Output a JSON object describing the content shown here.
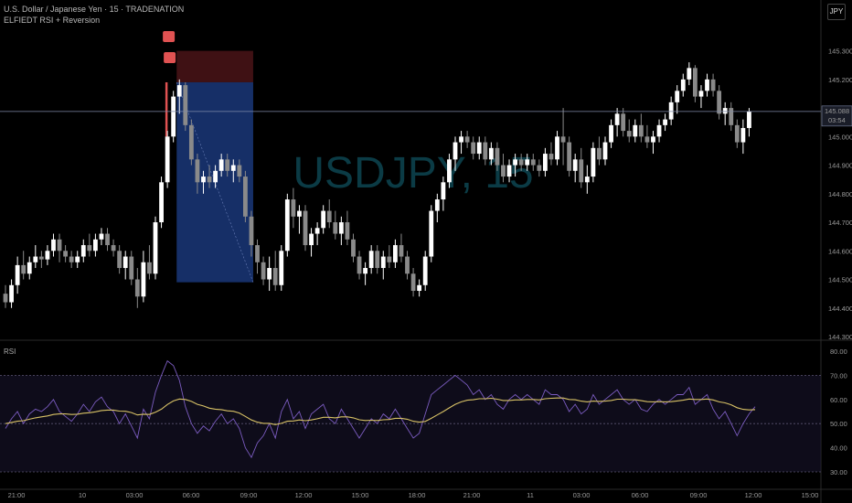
{
  "header": {
    "title": "U.S. Dollar / Japanese Yen · 15 · TRADENATION",
    "indicator": "ELFIEDT RSI + Reversion",
    "currency_button": "JPY"
  },
  "watermark": "USDJPY, 15",
  "rsi_label": "RSI",
  "price_tag": {
    "price": "145.088",
    "countdown": "03:54"
  },
  "colors": {
    "background": "#000000",
    "candle_up": "#ffffff",
    "candle_down": "#8a8a8a",
    "entry_zone": "#1e3f8a",
    "stop_zone": "#4a1418",
    "rsi_line": "#7b5cc0",
    "rsi_ma": "#d8c266",
    "signal": "#e05252",
    "rsi_band": "#1a1530"
  },
  "chart_data": [
    {
      "type": "candlestick",
      "title": "U.S. Dollar / Japanese Yen · 15 · TRADENATION",
      "ylim": [
        144.3,
        145.35
      ],
      "y_ticks": [
        "145.300",
        "145.200",
        "145.100",
        "145.000",
        "144.900",
        "144.800",
        "144.700",
        "144.600",
        "144.500",
        "144.400",
        "144.300"
      ],
      "x_ticks": [
        "21:00",
        "10",
        "03:00",
        "06:00",
        "09:00",
        "12:00",
        "15:00",
        "18:00",
        "21:00",
        "11",
        "03:00",
        "06:00",
        "09:00",
        "12:00",
        "15:00"
      ],
      "x_range": [
        0,
        148
      ],
      "x_tick_positions": [
        4,
        16,
        28,
        40,
        52,
        64,
        76,
        88,
        100,
        112,
        124,
        136,
        148,
        160,
        172
      ],
      "ohlc": [
        [
          144.45,
          144.48,
          144.4,
          144.42
        ],
        [
          144.42,
          144.5,
          144.4,
          144.48
        ],
        [
          144.48,
          144.58,
          144.45,
          144.55
        ],
        [
          144.55,
          144.6,
          144.5,
          144.52
        ],
        [
          144.52,
          144.58,
          144.5,
          144.56
        ],
        [
          144.56,
          144.62,
          144.54,
          144.58
        ],
        [
          144.58,
          144.6,
          144.54,
          144.57
        ],
        [
          144.57,
          144.62,
          144.55,
          144.6
        ],
        [
          144.6,
          144.66,
          144.58,
          144.64
        ],
        [
          144.64,
          144.66,
          144.56,
          144.6
        ],
        [
          144.6,
          144.62,
          144.56,
          144.58
        ],
        [
          144.58,
          144.6,
          144.54,
          144.56
        ],
        [
          144.56,
          144.6,
          144.54,
          144.58
        ],
        [
          144.58,
          144.64,
          144.56,
          144.62
        ],
        [
          144.62,
          144.66,
          144.58,
          144.6
        ],
        [
          144.6,
          144.66,
          144.58,
          144.64
        ],
        [
          144.64,
          144.68,
          144.62,
          144.66
        ],
        [
          144.66,
          144.68,
          144.6,
          144.62
        ],
        [
          144.62,
          144.64,
          144.58,
          144.6
        ],
        [
          144.6,
          144.62,
          144.52,
          144.54
        ],
        [
          144.54,
          144.6,
          144.5,
          144.58
        ],
        [
          144.58,
          144.6,
          144.48,
          144.5
        ],
        [
          144.5,
          144.54,
          144.4,
          144.44
        ],
        [
          144.44,
          144.6,
          144.42,
          144.56
        ],
        [
          144.56,
          144.62,
          144.5,
          144.52
        ],
        [
          144.52,
          144.72,
          144.5,
          144.7
        ],
        [
          144.7,
          144.86,
          144.68,
          144.84
        ],
        [
          144.84,
          145.02,
          144.82,
          145.0
        ],
        [
          145.0,
          145.16,
          144.98,
          145.14
        ],
        [
          145.14,
          145.2,
          145.08,
          145.18
        ],
        [
          145.18,
          145.19,
          145.02,
          145.04
        ],
        [
          145.04,
          145.06,
          144.9,
          144.92
        ],
        [
          144.92,
          144.94,
          144.8,
          144.84
        ],
        [
          144.84,
          144.88,
          144.8,
          144.86
        ],
        [
          144.86,
          144.9,
          144.82,
          144.84
        ],
        [
          144.84,
          144.9,
          144.82,
          144.88
        ],
        [
          144.88,
          144.94,
          144.86,
          144.92
        ],
        [
          144.92,
          144.94,
          144.86,
          144.88
        ],
        [
          144.88,
          144.92,
          144.84,
          144.9
        ],
        [
          144.9,
          144.92,
          144.84,
          144.86
        ],
        [
          144.86,
          144.88,
          144.7,
          144.72
        ],
        [
          144.72,
          144.74,
          144.58,
          144.62
        ],
        [
          144.62,
          144.64,
          144.52,
          144.56
        ],
        [
          144.56,
          144.58,
          144.48,
          144.5
        ],
        [
          144.5,
          144.58,
          144.46,
          144.54
        ],
        [
          144.54,
          144.6,
          144.46,
          144.48
        ],
        [
          144.48,
          144.62,
          144.46,
          144.6
        ],
        [
          144.6,
          144.8,
          144.58,
          144.78
        ],
        [
          144.78,
          144.82,
          144.68,
          144.72
        ],
        [
          144.72,
          144.76,
          144.66,
          144.74
        ],
        [
          144.74,
          144.76,
          144.6,
          144.62
        ],
        [
          144.62,
          144.68,
          144.58,
          144.66
        ],
        [
          144.66,
          144.7,
          144.62,
          144.68
        ],
        [
          144.68,
          144.76,
          144.66,
          144.74
        ],
        [
          144.74,
          144.78,
          144.68,
          144.7
        ],
        [
          144.7,
          144.74,
          144.64,
          144.66
        ],
        [
          144.66,
          144.72,
          144.62,
          144.7
        ],
        [
          144.7,
          144.74,
          144.62,
          144.64
        ],
        [
          144.64,
          144.66,
          144.56,
          144.58
        ],
        [
          144.58,
          144.6,
          144.5,
          144.52
        ],
        [
          144.52,
          144.56,
          144.48,
          144.54
        ],
        [
          144.54,
          144.62,
          144.52,
          144.6
        ],
        [
          144.6,
          144.62,
          144.52,
          144.54
        ],
        [
          144.54,
          144.6,
          144.5,
          144.58
        ],
        [
          144.58,
          144.62,
          144.54,
          144.56
        ],
        [
          144.56,
          144.64,
          144.54,
          144.62
        ],
        [
          144.62,
          144.66,
          144.56,
          144.58
        ],
        [
          144.58,
          144.6,
          144.5,
          144.52
        ],
        [
          144.52,
          144.54,
          144.44,
          144.46
        ],
        [
          144.46,
          144.5,
          144.44,
          144.48
        ],
        [
          144.48,
          144.6,
          144.46,
          144.58
        ],
        [
          144.58,
          144.76,
          144.56,
          144.74
        ],
        [
          144.74,
          144.8,
          144.7,
          144.78
        ],
        [
          144.78,
          144.86,
          144.74,
          144.84
        ],
        [
          144.84,
          144.94,
          144.82,
          144.92
        ],
        [
          144.92,
          145.0,
          144.88,
          144.98
        ],
        [
          144.98,
          145.02,
          144.94,
          145.0
        ],
        [
          145.0,
          145.02,
          144.96,
          144.98
        ],
        [
          144.98,
          145.0,
          144.92,
          144.94
        ],
        [
          144.94,
          145.0,
          144.92,
          144.98
        ],
        [
          144.98,
          145.0,
          144.9,
          144.92
        ],
        [
          144.92,
          144.98,
          144.9,
          144.96
        ],
        [
          144.96,
          144.98,
          144.88,
          144.9
        ],
        [
          144.9,
          144.94,
          144.84,
          144.86
        ],
        [
          144.86,
          144.92,
          144.84,
          144.9
        ],
        [
          144.9,
          144.94,
          144.86,
          144.92
        ],
        [
          144.92,
          144.94,
          144.88,
          144.9
        ],
        [
          144.9,
          144.94,
          144.88,
          144.92
        ],
        [
          144.92,
          144.94,
          144.88,
          144.9
        ],
        [
          144.9,
          144.92,
          144.86,
          144.88
        ],
        [
          144.88,
          144.96,
          144.86,
          144.94
        ],
        [
          144.94,
          144.98,
          144.9,
          144.92
        ],
        [
          144.92,
          145.02,
          144.9,
          145.0
        ],
        [
          145.0,
          145.1,
          144.9,
          144.98
        ],
        [
          144.98,
          145.0,
          144.86,
          144.88
        ],
        [
          144.88,
          144.94,
          144.84,
          144.92
        ],
        [
          144.92,
          144.96,
          144.82,
          144.84
        ],
        [
          144.84,
          144.9,
          144.8,
          144.86
        ],
        [
          144.86,
          144.98,
          144.84,
          144.96
        ],
        [
          144.96,
          145.0,
          144.9,
          144.92
        ],
        [
          144.92,
          145.0,
          144.9,
          144.98
        ],
        [
          144.98,
          145.06,
          144.96,
          145.04
        ],
        [
          145.04,
          145.1,
          145.0,
          145.08
        ],
        [
          145.08,
          145.1,
          145.0,
          145.02
        ],
        [
          145.02,
          145.06,
          144.98,
          145.0
        ],
        [
          145.0,
          145.06,
          144.98,
          145.04
        ],
        [
          145.04,
          145.08,
          144.98,
          145.0
        ],
        [
          145.0,
          145.04,
          144.96,
          144.98
        ],
        [
          144.98,
          145.02,
          144.94,
          145.0
        ],
        [
          145.0,
          145.06,
          144.98,
          145.04
        ],
        [
          145.04,
          145.08,
          145.02,
          145.06
        ],
        [
          145.06,
          145.14,
          145.04,
          145.12
        ],
        [
          145.12,
          145.18,
          145.08,
          145.16
        ],
        [
          145.16,
          145.22,
          145.14,
          145.2
        ],
        [
          145.2,
          145.26,
          145.18,
          145.24
        ],
        [
          145.24,
          145.25,
          145.12,
          145.14
        ],
        [
          145.14,
          145.18,
          145.1,
          145.16
        ],
        [
          145.16,
          145.22,
          145.14,
          145.2
        ],
        [
          145.2,
          145.22,
          145.14,
          145.16
        ],
        [
          145.16,
          145.18,
          145.06,
          145.08
        ],
        [
          145.08,
          145.12,
          145.04,
          145.1
        ],
        [
          145.1,
          145.12,
          145.02,
          145.04
        ],
        [
          145.04,
          145.06,
          144.96,
          144.98
        ],
        [
          144.98,
          145.06,
          144.94,
          145.03
        ],
        [
          145.03,
          145.1,
          145.0,
          145.088
        ]
      ]
    },
    {
      "type": "line",
      "title": "RSI",
      "ylim": [
        30,
        80
      ],
      "y_ticks": [
        "80.00",
        "70.00",
        "60.00",
        "50.00",
        "40.00",
        "30.00"
      ],
      "bands": [
        30,
        50,
        70
      ],
      "series": [
        {
          "name": "RSI",
          "values": [
            48,
            52,
            55,
            50,
            54,
            56,
            55,
            57,
            60,
            55,
            53,
            51,
            54,
            58,
            55,
            59,
            61,
            57,
            55,
            50,
            54,
            49,
            44,
            56,
            52,
            63,
            70,
            76,
            74,
            68,
            57,
            50,
            46,
            49,
            47,
            51,
            54,
            50,
            52,
            48,
            40,
            36,
            42,
            45,
            50,
            44,
            55,
            60,
            52,
            55,
            48,
            54,
            56,
            58,
            52,
            50,
            56,
            52,
            48,
            44,
            48,
            52,
            50,
            54,
            52,
            56,
            52,
            48,
            44,
            46,
            54,
            62,
            64,
            66,
            68,
            70,
            68,
            66,
            62,
            64,
            60,
            62,
            58,
            56,
            60,
            62,
            60,
            62,
            60,
            58,
            64,
            62,
            62,
            60,
            55,
            58,
            54,
            56,
            62,
            58,
            60,
            62,
            64,
            60,
            58,
            60,
            56,
            55,
            58,
            60,
            58,
            60,
            62,
            62,
            65,
            58,
            60,
            62,
            56,
            52,
            55,
            50,
            45,
            50,
            54,
            57
          ]
        },
        {
          "name": "MA",
          "values": [
            50,
            50.5,
            51,
            51.2,
            51.8,
            52.4,
            52.8,
            53.2,
            53.8,
            54,
            54,
            53.8,
            53.9,
            54.3,
            54.5,
            54.9,
            55.4,
            55.6,
            55.6,
            55.2,
            55.1,
            54.6,
            53.6,
            53.9,
            53.8,
            54.7,
            56,
            57.9,
            59.4,
            60.2,
            60,
            59.2,
            58,
            57.3,
            56.4,
            56,
            55.8,
            55.3,
            55.1,
            54.4,
            53,
            51.5,
            50.6,
            50.1,
            50.1,
            49.6,
            50.1,
            51,
            51.1,
            51.5,
            51.2,
            51.5,
            52,
            52.6,
            52.6,
            52.4,
            52.8,
            52.8,
            52.4,
            51.6,
            51.3,
            51.4,
            51.3,
            51.6,
            51.7,
            52.2,
            52.2,
            51.8,
            51,
            50.6,
            50.9,
            52.2,
            53.6,
            55,
            56.5,
            58,
            59,
            59.7,
            59.9,
            60.3,
            60.3,
            60.5,
            60.1,
            59.6,
            59.6,
            59.8,
            59.8,
            60,
            60,
            59.8,
            60.3,
            60.5,
            60.6,
            60.6,
            60,
            59.9,
            59.3,
            59,
            59.3,
            59.2,
            59.3,
            59.6,
            60.1,
            60.1,
            59.9,
            59.9,
            59.5,
            59.1,
            59,
            59.1,
            59,
            59.1,
            59.4,
            59.7,
            60.2,
            60,
            60,
            60.2,
            59.8,
            59,
            58.6,
            57.8,
            56.6,
            55.9,
            55.7,
            55.8
          ]
        }
      ]
    }
  ]
}
